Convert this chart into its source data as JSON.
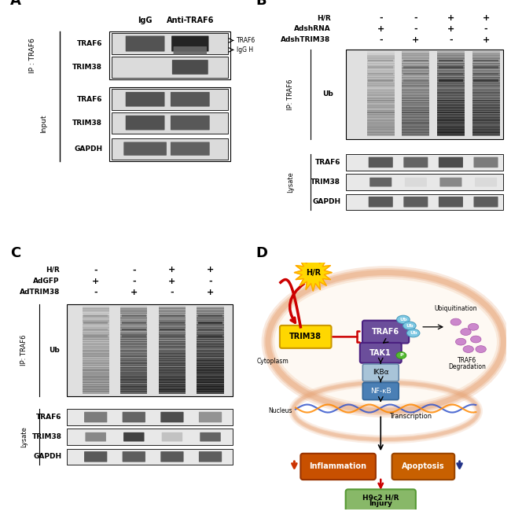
{
  "panel_A": {
    "label": "A",
    "col_headers": [
      "IgG",
      "Anti-TRAF6"
    ],
    "ip_label": "IP : TRAF6",
    "input_label": "Input",
    "rows": [
      "TRAF6",
      "TRIM38",
      "TRAF6",
      "TRIM38",
      "GAPDH"
    ],
    "row_sections": [
      "IP",
      "IP",
      "Input",
      "Input",
      "Input"
    ],
    "arrow_labels": [
      "TRAF6",
      "IgG H"
    ]
  },
  "panel_B": {
    "label": "B",
    "cond_vars": [
      "H/R",
      "AdshRNA",
      "AdshTRIM38"
    ],
    "cond_vals": [
      [
        "-",
        "+",
        "-"
      ],
      [
        "-",
        "-",
        "+"
      ],
      [
        "+",
        "+",
        "-"
      ],
      [
        "+",
        "-",
        "+"
      ]
    ],
    "ip_label": "IP: TRAF6",
    "lysate_label": "Lysate",
    "ub_label": "Ub",
    "rows_lysate": [
      "TRAF6",
      "TRIM38",
      "GAPDH"
    ],
    "lane_intensities": [
      0.3,
      0.55,
      0.85,
      0.75
    ],
    "traf6_bands": [
      0.7,
      0.65,
      0.75,
      0.55
    ],
    "trim38_bands": [
      0.65,
      0.15,
      0.5,
      0.15
    ],
    "gapdh_bands": [
      0.7,
      0.68,
      0.7,
      0.68
    ]
  },
  "panel_C": {
    "label": "C",
    "cond_vars": [
      "H/R",
      "AdGFP",
      "AdTRIM38"
    ],
    "cond_vals": [
      [
        "-",
        "+",
        "-"
      ],
      [
        "-",
        "-",
        "+"
      ],
      [
        "+",
        "+",
        "-"
      ],
      [
        "+",
        "-",
        "+"
      ]
    ],
    "ip_label": "IP: TRAF6",
    "lysate_label": "Lysate",
    "ub_label": "Ub",
    "rows_lysate": [
      "TRAF6",
      "TRIM38",
      "GAPDH"
    ],
    "lane_intensities": [
      0.35,
      0.7,
      0.8,
      0.92
    ],
    "traf6_bands": [
      0.55,
      0.65,
      0.75,
      0.45
    ],
    "trim38_bands": [
      0.5,
      0.8,
      0.25,
      0.65
    ],
    "gapdh_bands": [
      0.7,
      0.68,
      0.7,
      0.68
    ]
  },
  "panel_D": {
    "label": "D",
    "HR_color": "#FFD700",
    "TRIM38_color": "#FFD700",
    "TRAF6_color": "#6B4E9B",
    "TAK1_color": "#6B4E9B",
    "IKBa_color": "#A8C4D8",
    "NFKB_color": "#4A7FB5",
    "inflammation_color": "#C85000",
    "apoptosis_color": "#C86000",
    "H9c2_color": "#88B868",
    "cell_fill": "#FDEBD0",
    "cell_edge": "#E8A87C",
    "arrow_red": "#CC0000",
    "dna_blue": "#3355CC",
    "dna_orange": "#FF8800",
    "ub_color": "#CC88CC"
  },
  "figure_bg": "#ffffff"
}
